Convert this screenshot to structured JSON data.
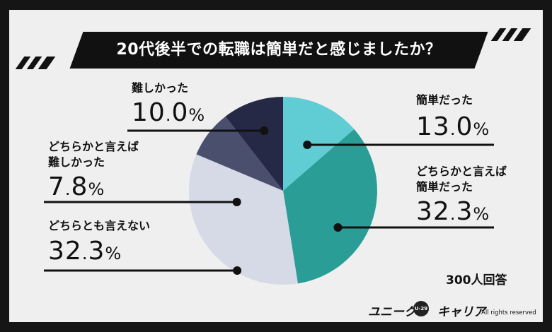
{
  "chart_data": {
    "type": "pie",
    "title": "20代後半での転職は簡単だと感じましたか？",
    "slices": [
      {
        "label": "簡単だった",
        "value": 13.0,
        "display": "13.0%",
        "color": "#5fcdd3"
      },
      {
        "label": "どちらかと言えば簡単だった",
        "label_lines": [
          "どちらかと言えば",
          "簡単だった"
        ],
        "value": 32.3,
        "display": "32.3%",
        "color": "#2a9d96"
      },
      {
        "label": "どちらとも言えない",
        "value": 32.3,
        "display": "32.3%",
        "color": "#d6dae6"
      },
      {
        "label": "どちらかと言えば難しかった",
        "label_lines": [
          "どちらかと言えば",
          "難しかった"
        ],
        "value": 7.8,
        "display": "7.8%",
        "color": "#4a4f6e"
      },
      {
        "label": "難しかった",
        "value": 10.0,
        "display": "10.0%",
        "color": "#252946"
      }
    ],
    "respondents": "300人回答"
  },
  "brand": {
    "name_left": "ユニーク",
    "badge": "U-29",
    "name_right": "キャリア",
    "rights": "All rights reserved"
  }
}
